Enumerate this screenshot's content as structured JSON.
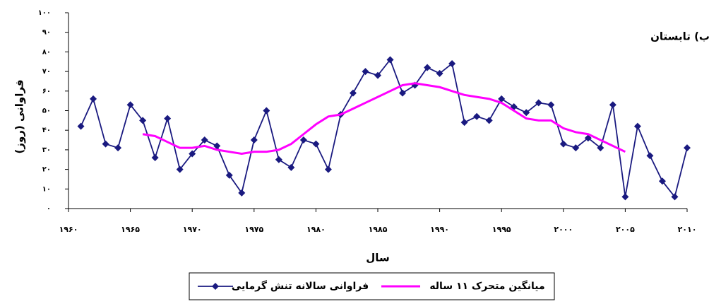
{
  "chart_data": {
    "type": "line",
    "title": "ب) تابستان",
    "ylabel": "فراوانی (روز)",
    "xlabel": "سال",
    "xlim": [
      1960,
      2010
    ],
    "xticks": [
      {
        "value": 1960,
        "label": "۱۹۶۰"
      },
      {
        "value": 1965,
        "label": "۱۹۶۵"
      },
      {
        "value": 1970,
        "label": "۱۹۷۰"
      },
      {
        "value": 1975,
        "label": "۱۹۷۵"
      },
      {
        "value": 1980,
        "label": "۱۹۸۰"
      },
      {
        "value": 1985,
        "label": "۱۹۸۵"
      },
      {
        "value": 1990,
        "label": "۱۹۹۰"
      },
      {
        "value": 1995,
        "label": "۱۹۹۵"
      },
      {
        "value": 2000,
        "label": "۲۰۰۰"
      },
      {
        "value": 2005,
        "label": "۲۰۰۵"
      },
      {
        "value": 2010,
        "label": "۲۰۱۰"
      }
    ],
    "ylim": [
      0,
      100
    ],
    "yticks": [
      {
        "value": 0,
        "label": "۰"
      },
      {
        "value": 10,
        "label": "۱۰"
      },
      {
        "value": 20,
        "label": "۲۰"
      },
      {
        "value": 30,
        "label": "۳۰"
      },
      {
        "value": 40,
        "label": "۴۰"
      },
      {
        "value": 50,
        "label": "۵۰"
      },
      {
        "value": 60,
        "label": "۶۰"
      },
      {
        "value": 70,
        "label": "۷۰"
      },
      {
        "value": 80,
        "label": "۸۰"
      },
      {
        "value": 90,
        "label": "۹۰"
      },
      {
        "value": 100,
        "label": "۱۰۰"
      }
    ],
    "grid": false,
    "legend": "bottom",
    "series": [
      {
        "name": "فراوانی سالانه تنش گرمایی",
        "color": "#1a1a80",
        "marker": "diamond",
        "x": [
          1961,
          1962,
          1963,
          1964,
          1965,
          1966,
          1967,
          1968,
          1969,
          1970,
          1971,
          1972,
          1973,
          1974,
          1975,
          1976,
          1977,
          1978,
          1979,
          1980,
          1981,
          1982,
          1983,
          1984,
          1985,
          1986,
          1987,
          1988,
          1989,
          1990,
          1991,
          1992,
          1993,
          1994,
          1995,
          1996,
          1997,
          1998,
          1999,
          2000,
          2001,
          2002,
          2003,
          2004,
          2005,
          2006,
          2007,
          2008,
          2009,
          2010
        ],
        "values": [
          42,
          56,
          33,
          31,
          53,
          45,
          26,
          46,
          20,
          28,
          35,
          32,
          17,
          8,
          35,
          50,
          25,
          21,
          35,
          33,
          20,
          48,
          59,
          70,
          68,
          76,
          59,
          63,
          72,
          69,
          74,
          44,
          47,
          45,
          56,
          52,
          49,
          54,
          53,
          33,
          31,
          36,
          31,
          53,
          6,
          42,
          27,
          14,
          6,
          31
        ]
      },
      {
        "name": "میانگین متحرک ۱۱ ساله",
        "color": "#ff00ff",
        "marker": "none",
        "x": [
          1966,
          1967,
          1968,
          1969,
          1970,
          1971,
          1972,
          1973,
          1974,
          1975,
          1976,
          1977,
          1978,
          1979,
          1980,
          1981,
          1982,
          1983,
          1984,
          1985,
          1986,
          1987,
          1988,
          1989,
          1990,
          1991,
          1992,
          1993,
          1994,
          1995,
          1996,
          1997,
          1998,
          1999,
          2000,
          2001,
          2002,
          2003,
          2004,
          2005
        ],
        "values": [
          38,
          37,
          34,
          31,
          31,
          32,
          30,
          29,
          28,
          29,
          29,
          30,
          33,
          38,
          43,
          47,
          48,
          51,
          54,
          57,
          60,
          63,
          64,
          63,
          62,
          60,
          58,
          57,
          56,
          54,
          50,
          46,
          45,
          45,
          41,
          39,
          38,
          35,
          32,
          29
        ]
      }
    ]
  }
}
